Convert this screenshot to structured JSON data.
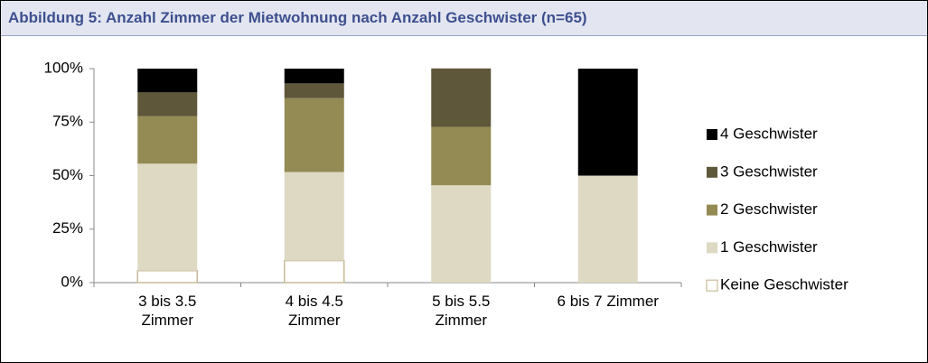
{
  "chart_data": {
    "type": "bar",
    "stacked": true,
    "title": "Abbildung 5: Anzahl Zimmer der Mietwohnung nach Anzahl Geschwister (n=65)",
    "categories": [
      "3 bis 3.5 Zimmer",
      "4 bis 4.5 Zimmer",
      "5 bis 5.5 Zimmer",
      "6 bis 7 Zimmer"
    ],
    "series": [
      {
        "name": "Keine Geschwister",
        "color": "#ffffff",
        "values": [
          5.6,
          10.3,
          0,
          0
        ]
      },
      {
        "name": "1 Geschwister",
        "color": "#ddd9c3",
        "values": [
          50,
          41.4,
          45.5,
          50
        ]
      },
      {
        "name": "2 Geschwister",
        "color": "#948a54",
        "values": [
          22.2,
          34.5,
          27.3,
          0
        ]
      },
      {
        "name": "3 Geschwister",
        "color": "#5e573a",
        "values": [
          11.1,
          6.9,
          27.3,
          0
        ]
      },
      {
        "name": "4 Geschwister",
        "color": "#000000",
        "values": [
          11.1,
          6.9,
          0,
          50
        ]
      }
    ],
    "ylim": [
      0,
      100
    ],
    "yticks": [
      {
        "value": 0,
        "label": "0%"
      },
      {
        "value": 25,
        "label": "25%"
      },
      {
        "value": 50,
        "label": "50%"
      },
      {
        "value": 75,
        "label": "75%"
      },
      {
        "value": 100,
        "label": "100%"
      }
    ],
    "legend": "right"
  }
}
